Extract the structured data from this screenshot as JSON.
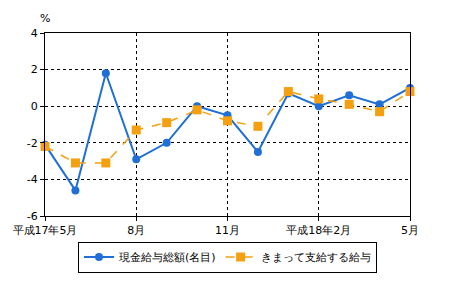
{
  "chart_data": {
    "type": "line",
    "ylabel": "%",
    "categories": [
      "平成17年5月",
      null,
      null,
      "8月",
      null,
      null,
      "11月",
      null,
      null,
      "平成18年2月",
      null,
      null,
      "5月"
    ],
    "series": [
      {
        "name": "現金給与総額(名目)",
        "color": "#1f6fd6",
        "marker": "circle",
        "line_style": "solid",
        "values": [
          -2.1,
          -4.6,
          1.8,
          -2.9,
          -2.0,
          0.0,
          -0.5,
          -2.5,
          0.7,
          0.0,
          0.6,
          0.1,
          1.0
        ]
      },
      {
        "name": "きまって支給する給与",
        "color": "#f5a010",
        "marker": "square",
        "line_style": "dash",
        "values": [
          -2.2,
          -3.1,
          -3.1,
          -1.3,
          -0.9,
          -0.2,
          -0.8,
          -1.1,
          0.8,
          0.4,
          0.1,
          -0.3,
          0.8
        ]
      }
    ],
    "ylim": [
      -6,
      4
    ],
    "yticks": [
      -6,
      -4,
      -2,
      0,
      2,
      4
    ],
    "grid": true,
    "legend": "bottom"
  }
}
